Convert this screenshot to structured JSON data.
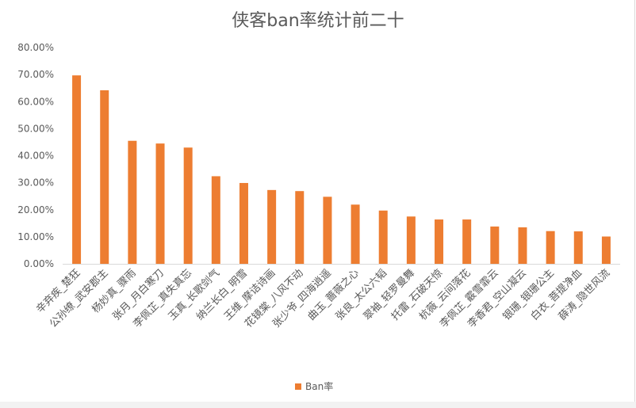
{
  "chart_data": {
    "type": "bar",
    "title": "侠客ban率统计前二十",
    "categories": [
      "辛弃疾_楚狂",
      "公孙缭_武安郡主",
      "杨妙真_骤雨",
      "张月_月白寒刀",
      "李佩芷_真失真忘",
      "玉真_长歌剑气",
      "纳兰长白_明雪",
      "王维_摩诘诗画",
      "花镜棠_八风不动",
      "张少爷_四海逍遥",
      "曲玉_蔷薇之心",
      "张良_太公六韬",
      "翠袖_轻罗曼舞",
      "托雷_石破天惊",
      "杭薇_云间落花",
      "李佩芷_霰雪霏云",
      "李香君_空山凝云",
      "银珊_银珊公主",
      "白衣_菩提净血",
      "薛涛_隐世风流"
    ],
    "series": [
      {
        "name": "Ban率",
        "values": [
          69.7,
          64.2,
          45.5,
          44.5,
          43.0,
          32.4,
          29.9,
          27.3,
          26.9,
          24.8,
          21.9,
          19.7,
          17.5,
          16.4,
          16.4,
          13.8,
          13.5,
          12.1,
          12.0,
          10.1
        ]
      }
    ],
    "yticks": [
      "0.00%",
      "10.00%",
      "20.00%",
      "30.00%",
      "40.00%",
      "50.00%",
      "60.00%",
      "70.00%",
      "80.00%"
    ],
    "ylim": [
      0,
      80
    ],
    "grid": false,
    "legend": "bottom",
    "color": "#ed7d31"
  }
}
